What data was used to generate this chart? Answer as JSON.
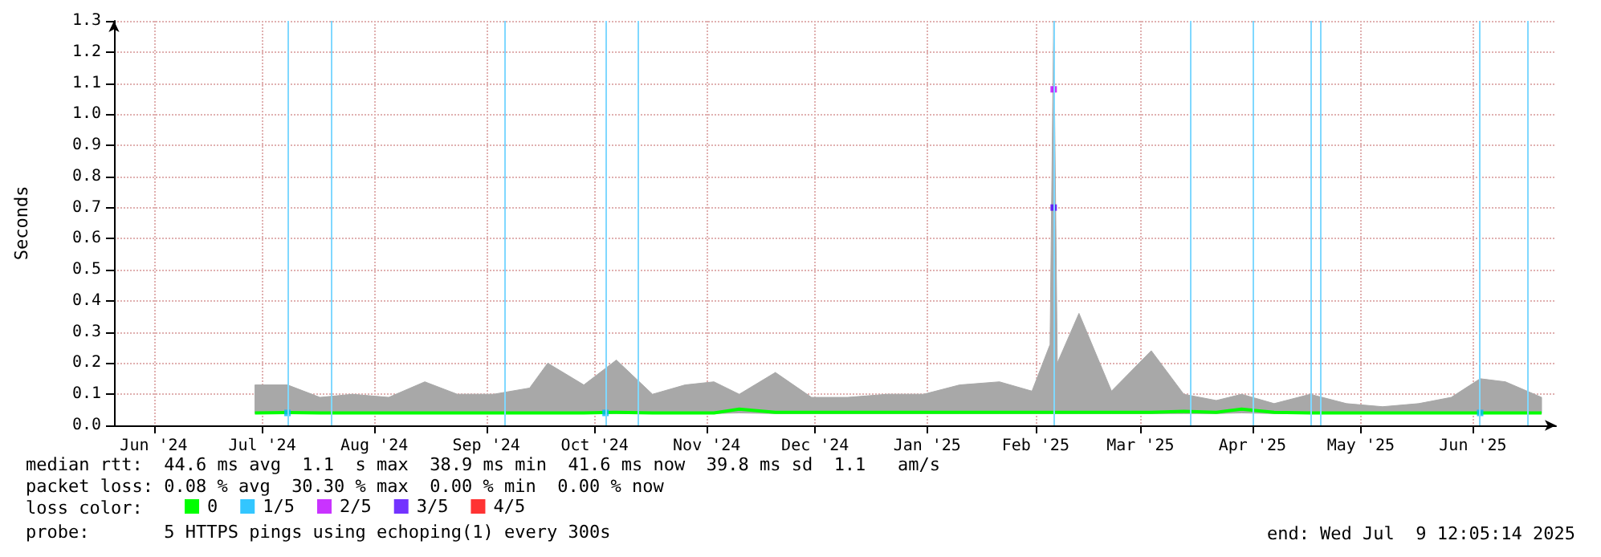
{
  "chart_data": {
    "type": "line",
    "ylabel": "Seconds",
    "xlim": [
      "2024-06-05",
      "2025-07-09"
    ],
    "xticks": [
      {
        "value": "2024-06-16",
        "label": "Jun '24"
      },
      {
        "value": "2024-07-16",
        "label": "Jul '24"
      },
      {
        "value": "2024-08-16",
        "label": "Aug '24"
      },
      {
        "value": "2024-09-16",
        "label": "Sep '24"
      },
      {
        "value": "2024-10-16",
        "label": "Oct '24"
      },
      {
        "value": "2024-11-16",
        "label": "Nov '24"
      },
      {
        "value": "2024-12-16",
        "label": "Dec '24"
      },
      {
        "value": "2025-01-16",
        "label": "Jan '25"
      },
      {
        "value": "2025-02-15",
        "label": "Feb '25"
      },
      {
        "value": "2025-03-16",
        "label": "Mar '25"
      },
      {
        "value": "2025-04-16",
        "label": "Apr '25"
      },
      {
        "value": "2025-05-16",
        "label": "May '25"
      },
      {
        "value": "2025-06-16",
        "label": "Jun '25"
      }
    ],
    "ylim": [
      0,
      1.3
    ],
    "yticks": [
      {
        "value": 0,
        "label": "0.0"
      },
      {
        "value": 0.1,
        "label": "0.1"
      },
      {
        "value": 0.2,
        "label": "0.2"
      },
      {
        "value": 0.3,
        "label": "0.3"
      },
      {
        "value": 0.4,
        "label": "0.4"
      },
      {
        "value": 0.5,
        "label": "0.5"
      },
      {
        "value": 0.6,
        "label": "0.6"
      },
      {
        "value": 0.7,
        "label": "0.7"
      },
      {
        "value": 0.8,
        "label": "0.8"
      },
      {
        "value": 0.9,
        "label": "0.9"
      },
      {
        "value": 1,
        "label": "1.0"
      },
      {
        "value": 1.1,
        "label": "1.1"
      },
      {
        "value": 1.2,
        "label": "1.2"
      },
      {
        "value": 1.3,
        "label": "1.3"
      }
    ],
    "grid": true,
    "legend": "bottom left",
    "series": [
      {
        "name": "0",
        "color": "#00ff00",
        "x": [
          "2024-07-14",
          "2024-07-23",
          "2024-08-01",
          "2024-08-10",
          "2024-08-20",
          "2024-08-30",
          "2024-09-08",
          "2024-09-18",
          "2024-09-28",
          "2024-10-03",
          "2024-10-13",
          "2024-10-22",
          "2024-11-01",
          "2024-11-10",
          "2024-11-18",
          "2024-11-25",
          "2024-12-05",
          "2024-12-15",
          "2024-12-25",
          "2025-01-05",
          "2025-01-15",
          "2025-01-25",
          "2025-02-05",
          "2025-02-14",
          "2025-02-19",
          "2025-02-20",
          "2025-02-21",
          "2025-02-27",
          "2025-03-08",
          "2025-03-19",
          "2025-03-28",
          "2025-04-06",
          "2025-04-13",
          "2025-04-22",
          "2025-05-02",
          "2025-05-12",
          "2025-05-22",
          "2025-06-01",
          "2025-06-10",
          "2025-06-18",
          "2025-06-25",
          "2025-07-05"
        ],
        "values": [
          0.04,
          0.041,
          0.04,
          0.04,
          0.04,
          0.04,
          0.04,
          0.04,
          0.04,
          0.04,
          0.04,
          0.042,
          0.04,
          0.04,
          0.04,
          0.052,
          0.042,
          0.042,
          0.042,
          0.042,
          0.042,
          0.042,
          0.042,
          0.042,
          0.042,
          0.042,
          0.042,
          0.042,
          0.042,
          0.042,
          0.045,
          0.042,
          0.052,
          0.042,
          0.04,
          0.04,
          0.04,
          0.04,
          0.04,
          0.04,
          0.04,
          0.04
        ],
        "lower": [
          0.038,
          0.038,
          0.038,
          0.038,
          0.038,
          0.038,
          0.038,
          0.038,
          0.038,
          0.038,
          0.038,
          0.038,
          0.038,
          0.038,
          0.038,
          0.04,
          0.038,
          0.038,
          0.038,
          0.038,
          0.038,
          0.038,
          0.038,
          0.038,
          0.038,
          0.038,
          0.038,
          0.038,
          0.038,
          0.038,
          0.038,
          0.038,
          0.04,
          0.038,
          0.038,
          0.038,
          0.038,
          0.038,
          0.038,
          0.038,
          0.038,
          0.038
        ],
        "upper": [
          0.13,
          0.13,
          0.09,
          0.1,
          0.09,
          0.14,
          0.1,
          0.1,
          0.12,
          0.2,
          0.13,
          0.21,
          0.1,
          0.13,
          0.14,
          0.1,
          0.17,
          0.09,
          0.09,
          0.1,
          0.1,
          0.13,
          0.14,
          0.11,
          0.26,
          1.3,
          0.2,
          0.36,
          0.11,
          0.24,
          0.1,
          0.08,
          0.1,
          0.07,
          0.1,
          0.07,
          0.06,
          0.07,
          0.09,
          0.15,
          0.14,
          0.09
        ]
      },
      {
        "name": "1/5",
        "type": "scatter",
        "color": "#00b8ff",
        "x": [
          "2024-07-23",
          "2024-10-19",
          "2025-06-18"
        ],
        "values": [
          0.04,
          0.04,
          0.04
        ]
      },
      {
        "name": "2/5",
        "type": "scatter",
        "color": "#bc00ff",
        "x": [
          "2025-02-20"
        ],
        "values": [
          1.08
        ]
      },
      {
        "name": "3/5",
        "type": "scatter",
        "color": "#5000ff",
        "x": [
          "2025-02-20"
        ],
        "values": [
          0.7
        ]
      },
      {
        "name": "4/5",
        "type": "scatter",
        "color": "#ff0000"
      }
    ],
    "ref_lines": [
      {
        "axis": "x",
        "value": "2024-07-23",
        "color": "#80d8ff"
      },
      {
        "axis": "x",
        "value": "2024-08-04",
        "color": "#80d8ff"
      },
      {
        "axis": "x",
        "value": "2024-09-21",
        "color": "#80d8ff"
      },
      {
        "axis": "x",
        "value": "2024-10-19",
        "color": "#80d8ff"
      },
      {
        "axis": "x",
        "value": "2024-10-28",
        "color": "#80d8ff"
      },
      {
        "axis": "x",
        "value": "2025-02-20",
        "color": "#80d8ff"
      },
      {
        "axis": "x",
        "value": "2025-03-30",
        "color": "#80d8ff"
      },
      {
        "axis": "x",
        "value": "2025-04-16",
        "color": "#80d8ff"
      },
      {
        "axis": "x",
        "value": "2025-05-02",
        "color": "#80d8ff"
      },
      {
        "axis": "x",
        "value": "2025-05-05",
        "color": "#80d8ff"
      },
      {
        "axis": "x",
        "value": "2025-06-18",
        "color": "#80d8ff"
      },
      {
        "axis": "x",
        "value": "2025-07-01",
        "color": "#80d8ff"
      }
    ],
    "annotations": [
      "median rtt:  44.6 ms avg  1.1  s max  38.9 ms min  41.6 ms now  39.8 ms sd  1.1   am/s",
      "packet loss: 0.08 % avg  30.30 % max  0.00 % min  0.00 % now",
      "loss color:",
      "probe:       5 HTTPS pings using echoping(1) every 300s",
      "end: Wed Jul  9 12:05:14 2025"
    ]
  }
}
